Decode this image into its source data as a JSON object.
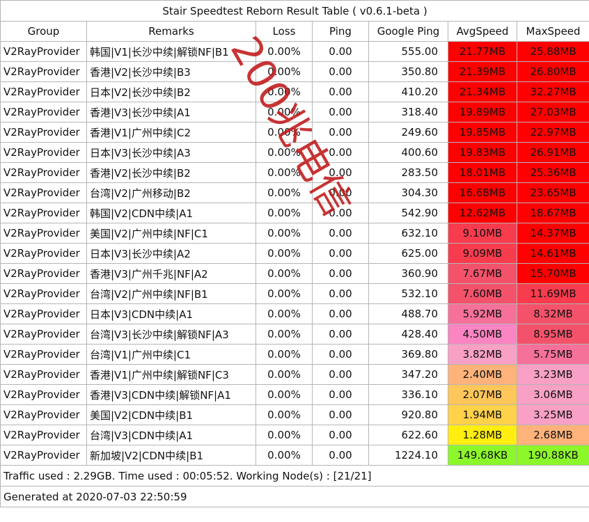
{
  "title": "Stair Speedtest Reborn Result Table ( v0.6.1-beta )",
  "headers": [
    "Group",
    "Remarks",
    "Loss",
    "Ping",
    "Google Ping",
    "AvgSpeed",
    "MaxSpeed"
  ],
  "rows": [
    {
      "group": "V2RayProvider",
      "remark": "韩国|V1|长沙中续|解锁NF|B1",
      "loss": "0.00%",
      "ping": "0.00",
      "gping": "555.00",
      "avg": "21.77MB",
      "max": "25.88MB",
      "avg_color": "#ff0000",
      "max_color": "#ff0000"
    },
    {
      "group": "V2RayProvider",
      "remark": "香港|V2|长沙中续|B3",
      "loss": "0.00%",
      "ping": "0.00",
      "gping": "350.80",
      "avg": "21.39MB",
      "max": "26.80MB",
      "avg_color": "#ff0000",
      "max_color": "#ff0000"
    },
    {
      "group": "V2RayProvider",
      "remark": "日本|V2|长沙中续|B2",
      "loss": "0.00%",
      "ping": "0.00",
      "gping": "410.20",
      "avg": "21.34MB",
      "max": "32.27MB",
      "avg_color": "#ff0000",
      "max_color": "#ff0000"
    },
    {
      "group": "V2RayProvider",
      "remark": "香港|V3|长沙中续|A1",
      "loss": "0.00%",
      "ping": "0.00",
      "gping": "318.40",
      "avg": "19.89MB",
      "max": "27.03MB",
      "avg_color": "#ff0000",
      "max_color": "#ff0000"
    },
    {
      "group": "V2RayProvider",
      "remark": "香港|V1|广州中续|C2",
      "loss": "0.00%",
      "ping": "0.00",
      "gping": "249.60",
      "avg": "19.85MB",
      "max": "22.97MB",
      "avg_color": "#ff0000",
      "max_color": "#ff0000"
    },
    {
      "group": "V2RayProvider",
      "remark": "日本|V3|长沙中续|A3",
      "loss": "0.00%",
      "ping": "0.00",
      "gping": "400.60",
      "avg": "19.83MB",
      "max": "26.91MB",
      "avg_color": "#ff0000",
      "max_color": "#ff0000"
    },
    {
      "group": "V2RayProvider",
      "remark": "香港|V2|长沙中续|B2",
      "loss": "0.00%",
      "ping": "0.00",
      "gping": "283.50",
      "avg": "18.01MB",
      "max": "25.36MB",
      "avg_color": "#ff0000",
      "max_color": "#ff0000"
    },
    {
      "group": "V2RayProvider",
      "remark": "台湾|V2|广州移动|B2",
      "loss": "0.00%",
      "ping": "0.00",
      "gping": "304.30",
      "avg": "16.68MB",
      "max": "23.65MB",
      "avg_color": "#ff0000",
      "max_color": "#ff0000"
    },
    {
      "group": "V2RayProvider",
      "remark": "韩国|V2|CDN中续|A1",
      "loss": "0.00%",
      "ping": "0.00",
      "gping": "542.90",
      "avg": "12.62MB",
      "max": "18.67MB",
      "avg_color": "#ff0000",
      "max_color": "#ff0000"
    },
    {
      "group": "V2RayProvider",
      "remark": "美国|V2|广州中续|NF|C1",
      "loss": "0.00%",
      "ping": "0.00",
      "gping": "632.10",
      "avg": "9.10MB",
      "max": "14.37MB",
      "avg_color": "#f83c4e",
      "max_color": "#ff0000"
    },
    {
      "group": "V2RayProvider",
      "remark": "日本|V3|长沙中续|A2",
      "loss": "0.00%",
      "ping": "0.00",
      "gping": "625.00",
      "avg": "9.09MB",
      "max": "14.61MB",
      "avg_color": "#f83c4e",
      "max_color": "#ff0000"
    },
    {
      "group": "V2RayProvider",
      "remark": "香港|V3|广州千兆|NF|A2",
      "loss": "0.00%",
      "ping": "0.00",
      "gping": "360.90",
      "avg": "7.67MB",
      "max": "15.70MB",
      "avg_color": "#f4526a",
      "max_color": "#ff0000"
    },
    {
      "group": "V2RayProvider",
      "remark": "台湾|V2|广州中续|NF|B1",
      "loss": "0.00%",
      "ping": "0.00",
      "gping": "532.10",
      "avg": "7.60MB",
      "max": "11.69MB",
      "avg_color": "#f4526a",
      "max_color": "#f83c4e"
    },
    {
      "group": "V2RayProvider",
      "remark": "日本|V3|CDN中续|A1",
      "loss": "0.00%",
      "ping": "0.00",
      "gping": "488.70",
      "avg": "5.92MB",
      "max": "8.32MB",
      "avg_color": "#f6719a",
      "max_color": "#f4526a"
    },
    {
      "group": "V2RayProvider",
      "remark": "台湾|V3|长沙中续|解锁NF|A3",
      "loss": "0.00%",
      "ping": "0.00",
      "gping": "428.40",
      "avg": "4.50MB",
      "max": "8.95MB",
      "avg_color": "#fb84c2",
      "max_color": "#f4526a"
    },
    {
      "group": "V2RayProvider",
      "remark": "台湾|V1|广州中续|C1",
      "loss": "0.00%",
      "ping": "0.00",
      "gping": "369.80",
      "avg": "3.82MB",
      "max": "5.75MB",
      "avg_color": "#f9a0c7",
      "max_color": "#f6719a"
    },
    {
      "group": "V2RayProvider",
      "remark": "香港|V1|广州中续|解锁NF|C3",
      "loss": "0.00%",
      "ping": "0.00",
      "gping": "347.20",
      "avg": "2.40MB",
      "max": "3.23MB",
      "avg_color": "#ffb27a",
      "max_color": "#f9a0c7"
    },
    {
      "group": "V2RayProvider",
      "remark": "香港|V3|CDN中续|解锁NF|A1",
      "loss": "0.00%",
      "ping": "0.00",
      "gping": "336.10",
      "avg": "2.07MB",
      "max": "3.06MB",
      "avg_color": "#ffc65a",
      "max_color": "#f9a0c7"
    },
    {
      "group": "V2RayProvider",
      "remark": "美国|V2|CDN中续|B1",
      "loss": "0.00%",
      "ping": "0.00",
      "gping": "920.80",
      "avg": "1.94MB",
      "max": "3.25MB",
      "avg_color": "#ffd24a",
      "max_color": "#f9a0c7"
    },
    {
      "group": "V2RayProvider",
      "remark": "台湾|V3|CDN中续|A1",
      "loss": "0.00%",
      "ping": "0.00",
      "gping": "622.60",
      "avg": "1.28MB",
      "max": "2.68MB",
      "avg_color": "#ffee10",
      "max_color": "#ffb27a"
    },
    {
      "group": "V2RayProvider",
      "remark": "新加坡|V2|CDN中续|B1",
      "loss": "0.00%",
      "ping": "0.00",
      "gping": "1224.10",
      "avg": "149.68KB",
      "max": "190.88KB",
      "avg_color": "#8cf72a",
      "max_color": "#8cf72a"
    }
  ],
  "footer": {
    "traffic": "Traffic used : 2.29GB. Time used : 00:05:52. Working Node(s) : [21/21]",
    "generated": "Generated at 2020-07-03 22:50:59"
  },
  "watermark": {
    "text": "200兆电信",
    "color": "#c01818"
  }
}
